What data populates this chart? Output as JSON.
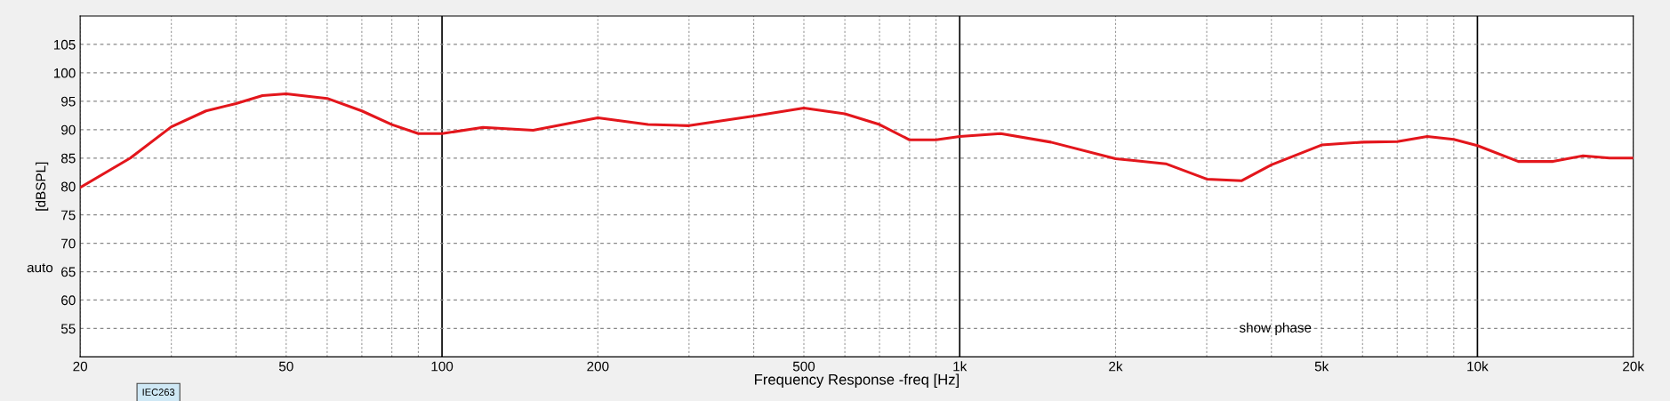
{
  "chart_data": {
    "type": "line",
    "xlabel": "Frequency Response -freq [Hz]",
    "ylabel": "[dBSPL]",
    "log": "x",
    "grid": true,
    "marker": "none",
    "line_style": "solid",
    "xlim": [
      20,
      20000
    ],
    "ylim": [
      50,
      110
    ],
    "xticks": [
      {
        "value": 20,
        "label": "20"
      },
      {
        "value": 30,
        "label": null
      },
      {
        "value": 40,
        "label": null
      },
      {
        "value": 50,
        "label": "50"
      },
      {
        "value": 60,
        "label": null
      },
      {
        "value": 70,
        "label": null
      },
      {
        "value": 80,
        "label": null
      },
      {
        "value": 90,
        "label": null
      },
      {
        "value": 100,
        "label": "100"
      },
      {
        "value": 200,
        "label": "200"
      },
      {
        "value": 300,
        "label": null
      },
      {
        "value": 400,
        "label": null
      },
      {
        "value": 500,
        "label": "500"
      },
      {
        "value": 600,
        "label": null
      },
      {
        "value": 700,
        "label": null
      },
      {
        "value": 800,
        "label": null
      },
      {
        "value": 900,
        "label": null
      },
      {
        "value": 1000,
        "label": "1k"
      },
      {
        "value": 2000,
        "label": "2k"
      },
      {
        "value": 3000,
        "label": null
      },
      {
        "value": 4000,
        "label": null
      },
      {
        "value": 5000,
        "label": "5k"
      },
      {
        "value": 6000,
        "label": null
      },
      {
        "value": 7000,
        "label": null
      },
      {
        "value": 8000,
        "label": null
      },
      {
        "value": 9000,
        "label": null
      },
      {
        "value": 10000,
        "label": "10k"
      },
      {
        "value": 20000,
        "label": "20k"
      }
    ],
    "yticks": [
      55,
      60,
      65,
      70,
      75,
      80,
      85,
      90,
      95,
      100,
      105
    ],
    "annotations": [
      "auto",
      "IEC263",
      "show phase"
    ],
    "series": [
      {
        "color": "#e3161c",
        "x": [
          20,
          25,
          30,
          35,
          40,
          45,
          50,
          60,
          70,
          80,
          90,
          100,
          120,
          150,
          200,
          250,
          300,
          400,
          500,
          600,
          700,
          800,
          900,
          1000,
          1200,
          1500,
          2000,
          2500,
          3000,
          3500,
          4000,
          5000,
          6000,
          7000,
          8000,
          9000,
          10000,
          12000,
          14000,
          16000,
          18000,
          20000
        ],
        "values": [
          79.8,
          85,
          90.5,
          93.3,
          94.6,
          96,
          96.3,
          95.5,
          93.3,
          90.9,
          89.3,
          89.3,
          90.4,
          89.9,
          92.1,
          90.9,
          90.7,
          92.4,
          93.8,
          92.8,
          90.9,
          88.2,
          88.2,
          88.8,
          89.3,
          87.8,
          84.9,
          84,
          81.3,
          81,
          83.8,
          87.3,
          87.8,
          87.9,
          88.8,
          88.3,
          87.2,
          84.4,
          84.4,
          85.4,
          85,
          85
        ]
      }
    ]
  }
}
